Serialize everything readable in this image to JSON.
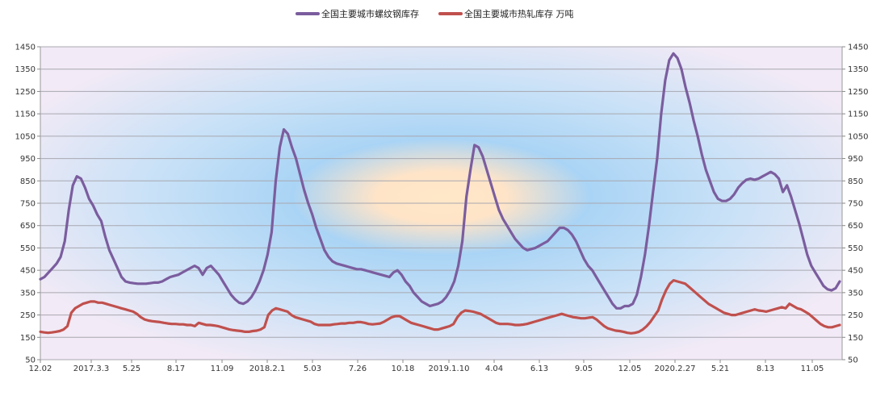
{
  "chart_data": {
    "type": "line",
    "legend_position": "top",
    "grid": true,
    "ylim": [
      50,
      1450
    ],
    "y_ticks": [
      50,
      150,
      250,
      350,
      450,
      550,
      650,
      750,
      850,
      950,
      1050,
      1150,
      1250,
      1350,
      1450
    ],
    "x_ticks": [
      "12.02",
      "2017.3.3",
      "5.25",
      "8.17",
      "11.09",
      "2018.2.1",
      "5.03",
      "7.26",
      "10.18",
      "2019.1.10",
      "4.04",
      "6.13",
      "9.05",
      "12.05",
      "2020.2.27",
      "5.21",
      "8.13",
      "11.05"
    ],
    "series": [
      {
        "name": "全国主要城市螺纹钢库存",
        "color": "#7b5d9e",
        "values": [
          410,
          420,
          440,
          460,
          480,
          510,
          580,
          720,
          830,
          870,
          860,
          820,
          770,
          740,
          700,
          670,
          600,
          540,
          500,
          460,
          420,
          400,
          395,
          392,
          390,
          390,
          390,
          392,
          395,
          395,
          400,
          410,
          420,
          425,
          430,
          440,
          450,
          460,
          470,
          460,
          430,
          460,
          470,
          450,
          430,
          400,
          370,
          340,
          320,
          305,
          300,
          310,
          330,
          360,
          400,
          450,
          520,
          620,
          850,
          1000,
          1080,
          1060,
          1000,
          950,
          880,
          810,
          750,
          700,
          640,
          590,
          540,
          510,
          490,
          480,
          475,
          470,
          465,
          460,
          455,
          455,
          450,
          445,
          440,
          435,
          430,
          425,
          420,
          440,
          450,
          430,
          400,
          380,
          350,
          330,
          310,
          300,
          290,
          295,
          300,
          310,
          330,
          360,
          400,
          470,
          580,
          780,
          900,
          1010,
          1000,
          960,
          900,
          840,
          780,
          720,
          680,
          650,
          620,
          590,
          570,
          550,
          540,
          545,
          550,
          560,
          570,
          580,
          600,
          620,
          640,
          640,
          630,
          610,
          580,
          540,
          500,
          470,
          450,
          420,
          390,
          360,
          330,
          300,
          280,
          280,
          290,
          290,
          300,
          340,
          420,
          520,
          650,
          800,
          950,
          1150,
          1300,
          1390,
          1420,
          1400,
          1350,
          1270,
          1200,
          1120,
          1050,
          970,
          900,
          850,
          800,
          770,
          760,
          760,
          770,
          790,
          820,
          840,
          855,
          860,
          855,
          860,
          870,
          880,
          890,
          880,
          860,
          800,
          830,
          780,
          720,
          660,
          590,
          520,
          470,
          440,
          410,
          380,
          365,
          360,
          370,
          400
        ]
      },
      {
        "name": "全国主要城市热轧库存 万吨",
        "color": "#c0504d",
        "values": [
          175,
          172,
          170,
          172,
          175,
          178,
          185,
          200,
          260,
          280,
          290,
          300,
          305,
          310,
          310,
          305,
          305,
          300,
          295,
          290,
          285,
          280,
          275,
          270,
          265,
          255,
          240,
          230,
          225,
          222,
          220,
          218,
          215,
          212,
          210,
          210,
          208,
          208,
          205,
          205,
          200,
          215,
          210,
          205,
          205,
          203,
          200,
          195,
          190,
          185,
          182,
          180,
          178,
          175,
          175,
          178,
          180,
          185,
          195,
          250,
          270,
          280,
          275,
          270,
          265,
          250,
          240,
          235,
          230,
          225,
          220,
          210,
          205,
          205,
          205,
          205,
          208,
          210,
          212,
          212,
          215,
          215,
          218,
          218,
          215,
          210,
          208,
          210,
          212,
          220,
          230,
          240,
          245,
          245,
          235,
          225,
          215,
          210,
          205,
          200,
          195,
          190,
          185,
          185,
          190,
          195,
          200,
          210,
          240,
          260,
          270,
          268,
          265,
          260,
          255,
          245,
          235,
          225,
          215,
          210,
          210,
          210,
          208,
          205,
          205,
          207,
          210,
          215,
          220,
          225,
          230,
          235,
          240,
          245,
          250,
          255,
          250,
          245,
          240,
          238,
          235,
          235,
          238,
          240,
          230,
          215,
          200,
          190,
          185,
          180,
          178,
          175,
          170,
          168,
          170,
          175,
          185,
          200,
          220,
          245,
          270,
          320,
          360,
          390,
          405,
          400,
          395,
          390,
          375,
          360,
          345,
          330,
          315,
          300,
          290,
          280,
          270,
          260,
          255,
          250,
          250,
          255,
          260,
          265,
          270,
          275,
          270,
          268,
          265,
          270,
          275,
          280,
          285,
          280,
          300,
          290,
          280,
          275,
          265,
          255,
          240,
          225,
          210,
          200,
          195,
          195,
          200,
          205
        ]
      }
    ]
  }
}
